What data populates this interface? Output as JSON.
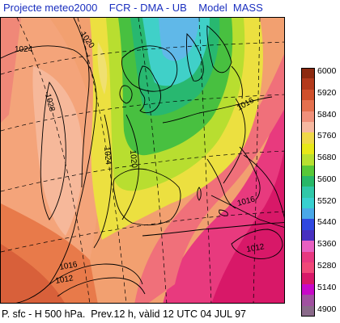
{
  "header": {
    "title": "Projecte meteo2000    FCR - DMA - UB    Model  MASS"
  },
  "map": {
    "isobar_labels": [
      {
        "text": "1024"
      },
      {
        "text": "1020"
      },
      {
        "text": "1028"
      },
      {
        "text": "1024"
      },
      {
        "text": "1020"
      },
      {
        "text": "1016"
      },
      {
        "text": "1016"
      },
      {
        "text": "1016"
      },
      {
        "text": "1012"
      },
      {
        "text": "1012"
      }
    ]
  },
  "legend": {
    "levels": [
      {
        "label": "6000",
        "color": "#8c2a10"
      },
      {
        "label": "",
        "color": "#b33a1c"
      },
      {
        "label": "5920",
        "color": "#d0502c"
      },
      {
        "label": "",
        "color": "#e4704e"
      },
      {
        "label": "5840",
        "color": "#f0907a"
      },
      {
        "label": "",
        "color": "#f6b8a0"
      },
      {
        "label": "5760",
        "color": "#f0d848"
      },
      {
        "label": "",
        "color": "#e8e818"
      },
      {
        "label": "5680",
        "color": "#b8e030"
      },
      {
        "label": "",
        "color": "#58c838"
      },
      {
        "label": "5600",
        "color": "#28b868"
      },
      {
        "label": "",
        "color": "#30c8a8"
      },
      {
        "label": "5520",
        "color": "#38d0d0"
      },
      {
        "label": "",
        "color": "#4aa8e8"
      },
      {
        "label": "5440",
        "color": "#3048e0"
      },
      {
        "label": "",
        "color": "#4830c0"
      },
      {
        "label": "5360",
        "color": "#e860c0"
      },
      {
        "label": "",
        "color": "#e83880"
      },
      {
        "label": "5280",
        "color": "#f04878"
      },
      {
        "label": "",
        "color": "#d81868"
      },
      {
        "label": "5140",
        "color": "#c808c8"
      },
      {
        "label": "",
        "color": "#a050a0"
      },
      {
        "label": "4900",
        "color": "#8a6a8a"
      }
    ]
  },
  "footer": {
    "caption": "P. sfc - H 500 hPa.  Prev.12 h, vàlid 12 UTC 04 JUL 97"
  }
}
